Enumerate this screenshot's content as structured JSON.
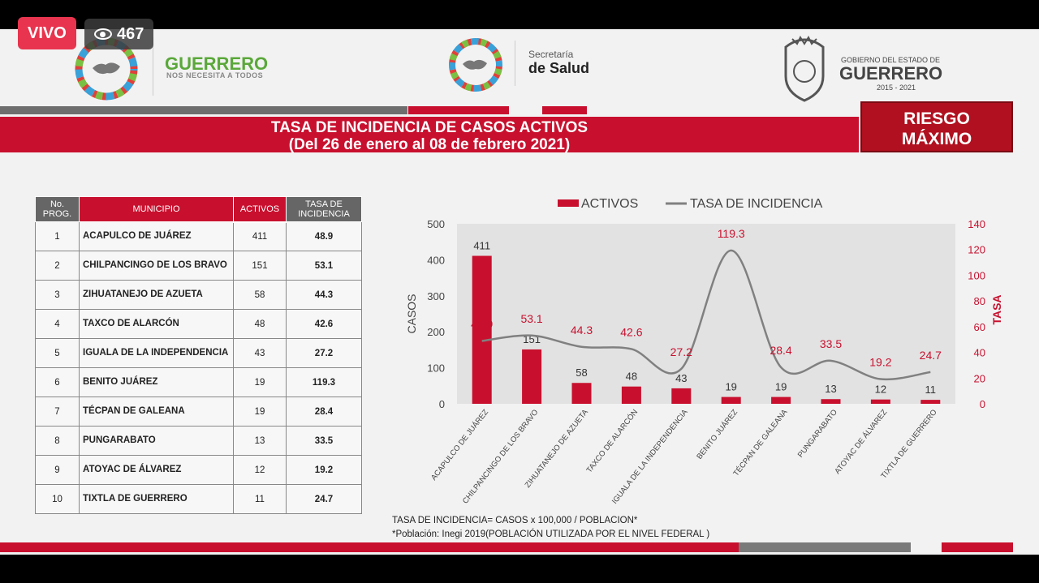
{
  "stream": {
    "live_label": "VIVO",
    "viewers": "467"
  },
  "header": {
    "left_brand": "GUERRERO",
    "left_slogan": "NOS NECESITA A TODOS",
    "center_line1": "Secretaría",
    "center_line2": "de Salud",
    "right_line1": "GOBIERNO DEL ESTADO DE",
    "right_line2": "GUERRERO",
    "right_years": "2015 - 2021"
  },
  "title": {
    "main": "TASA DE INCIDENCIA DE CASOS ACTIVOS",
    "dates": "(Del 26 de enero al 08 de febrero 2021)",
    "risk_line1": "RIESGO",
    "risk_line2": "MÁXIMO"
  },
  "colors": {
    "red": "#c8102e",
    "gray": "#666666",
    "line": "#808080"
  },
  "table": {
    "headers": [
      {
        "l1": "No.",
        "l2": "PROG."
      },
      {
        "l1": "MUNICIPIO"
      },
      {
        "l1": "ACTIVOS"
      },
      {
        "l1": "TASA DE",
        "l2": "INCIDENCIA"
      }
    ],
    "rows": [
      {
        "no": "1",
        "municipio": "ACAPULCO DE JUÁREZ",
        "activos": "411",
        "tasa": "48.9"
      },
      {
        "no": "2",
        "municipio": "CHILPANCINGO DE LOS BRAVO",
        "activos": "151",
        "tasa": "53.1"
      },
      {
        "no": "3",
        "municipio": "ZIHUATANEJO DE AZUETA",
        "activos": "58",
        "tasa": "44.3"
      },
      {
        "no": "4",
        "municipio": "TAXCO DE ALARCÓN",
        "activos": "48",
        "tasa": "42.6"
      },
      {
        "no": "5",
        "municipio": "IGUALA DE LA INDEPENDENCIA",
        "activos": "43",
        "tasa": "27.2"
      },
      {
        "no": "6",
        "municipio": "BENITO JUÁREZ",
        "activos": "19",
        "tasa": "119.3"
      },
      {
        "no": "7",
        "municipio": "TÉCPAN DE GALEANA",
        "activos": "19",
        "tasa": "28.4"
      },
      {
        "no": "8",
        "municipio": "PUNGARABATO",
        "activos": "13",
        "tasa": "33.5"
      },
      {
        "no": "9",
        "municipio": "ATOYAC DE ÁLVAREZ",
        "activos": "12",
        "tasa": "19.2"
      },
      {
        "no": "10",
        "municipio": "TIXTLA DE GUERRERO",
        "activos": "11",
        "tasa": "24.7"
      }
    ]
  },
  "chart_data": {
    "type": "bar",
    "categories": [
      "ACAPULCO DE JUÁREZ",
      "CHILPANCINGO DE LOS BRAVO",
      "ZIHUATANEJO DE AZUETA",
      "TAXCO DE ALARCÓN",
      "IGUALA DE LA INDEPENDENCIA",
      "BENITO JUÁREZ",
      "TÉCPAN DE GALEANA",
      "PUNGARABATO",
      "ATOYAC DE ÁLVAREZ",
      "TIXTLA DE GUERRERO"
    ],
    "series": [
      {
        "name": "ACTIVOS",
        "type": "bar",
        "axis": "left",
        "values": [
          411,
          151,
          58,
          48,
          43,
          19,
          19,
          13,
          12,
          11
        ],
        "labels": [
          "411",
          "151",
          "58",
          "48",
          "43",
          "19",
          "19",
          "13",
          "12",
          "11"
        ]
      },
      {
        "name": "TASA DE INCIDENCIA",
        "type": "line",
        "axis": "right",
        "values": [
          48.9,
          53.1,
          44.3,
          42.6,
          27.2,
          119.3,
          28.4,
          33.5,
          19.2,
          24.7
        ],
        "labels": [
          "48.9",
          "53.1",
          "44.3",
          "42.6",
          "27.2",
          "119.3",
          "28.4",
          "33.5",
          "19.2",
          "24.7"
        ]
      }
    ],
    "ylabel": "CASOS",
    "y2label": "TASA",
    "ylim": [
      0,
      500
    ],
    "yticks": [
      "0",
      "100",
      "200",
      "300",
      "400",
      "500"
    ],
    "y2lim": [
      0,
      140
    ],
    "y2ticks": [
      "0",
      "20",
      "40",
      "60",
      "80",
      "100",
      "120",
      "140"
    ],
    "legend_position": "top",
    "grid": false
  },
  "notes": {
    "formula": "TASA DE INCIDENCIA= CASOS x 100,000 / POBLACION*",
    "population": "*Población: Inegi 2019(POBLACIÓN UTILIZADA POR EL NIVEL FEDERAL )"
  }
}
